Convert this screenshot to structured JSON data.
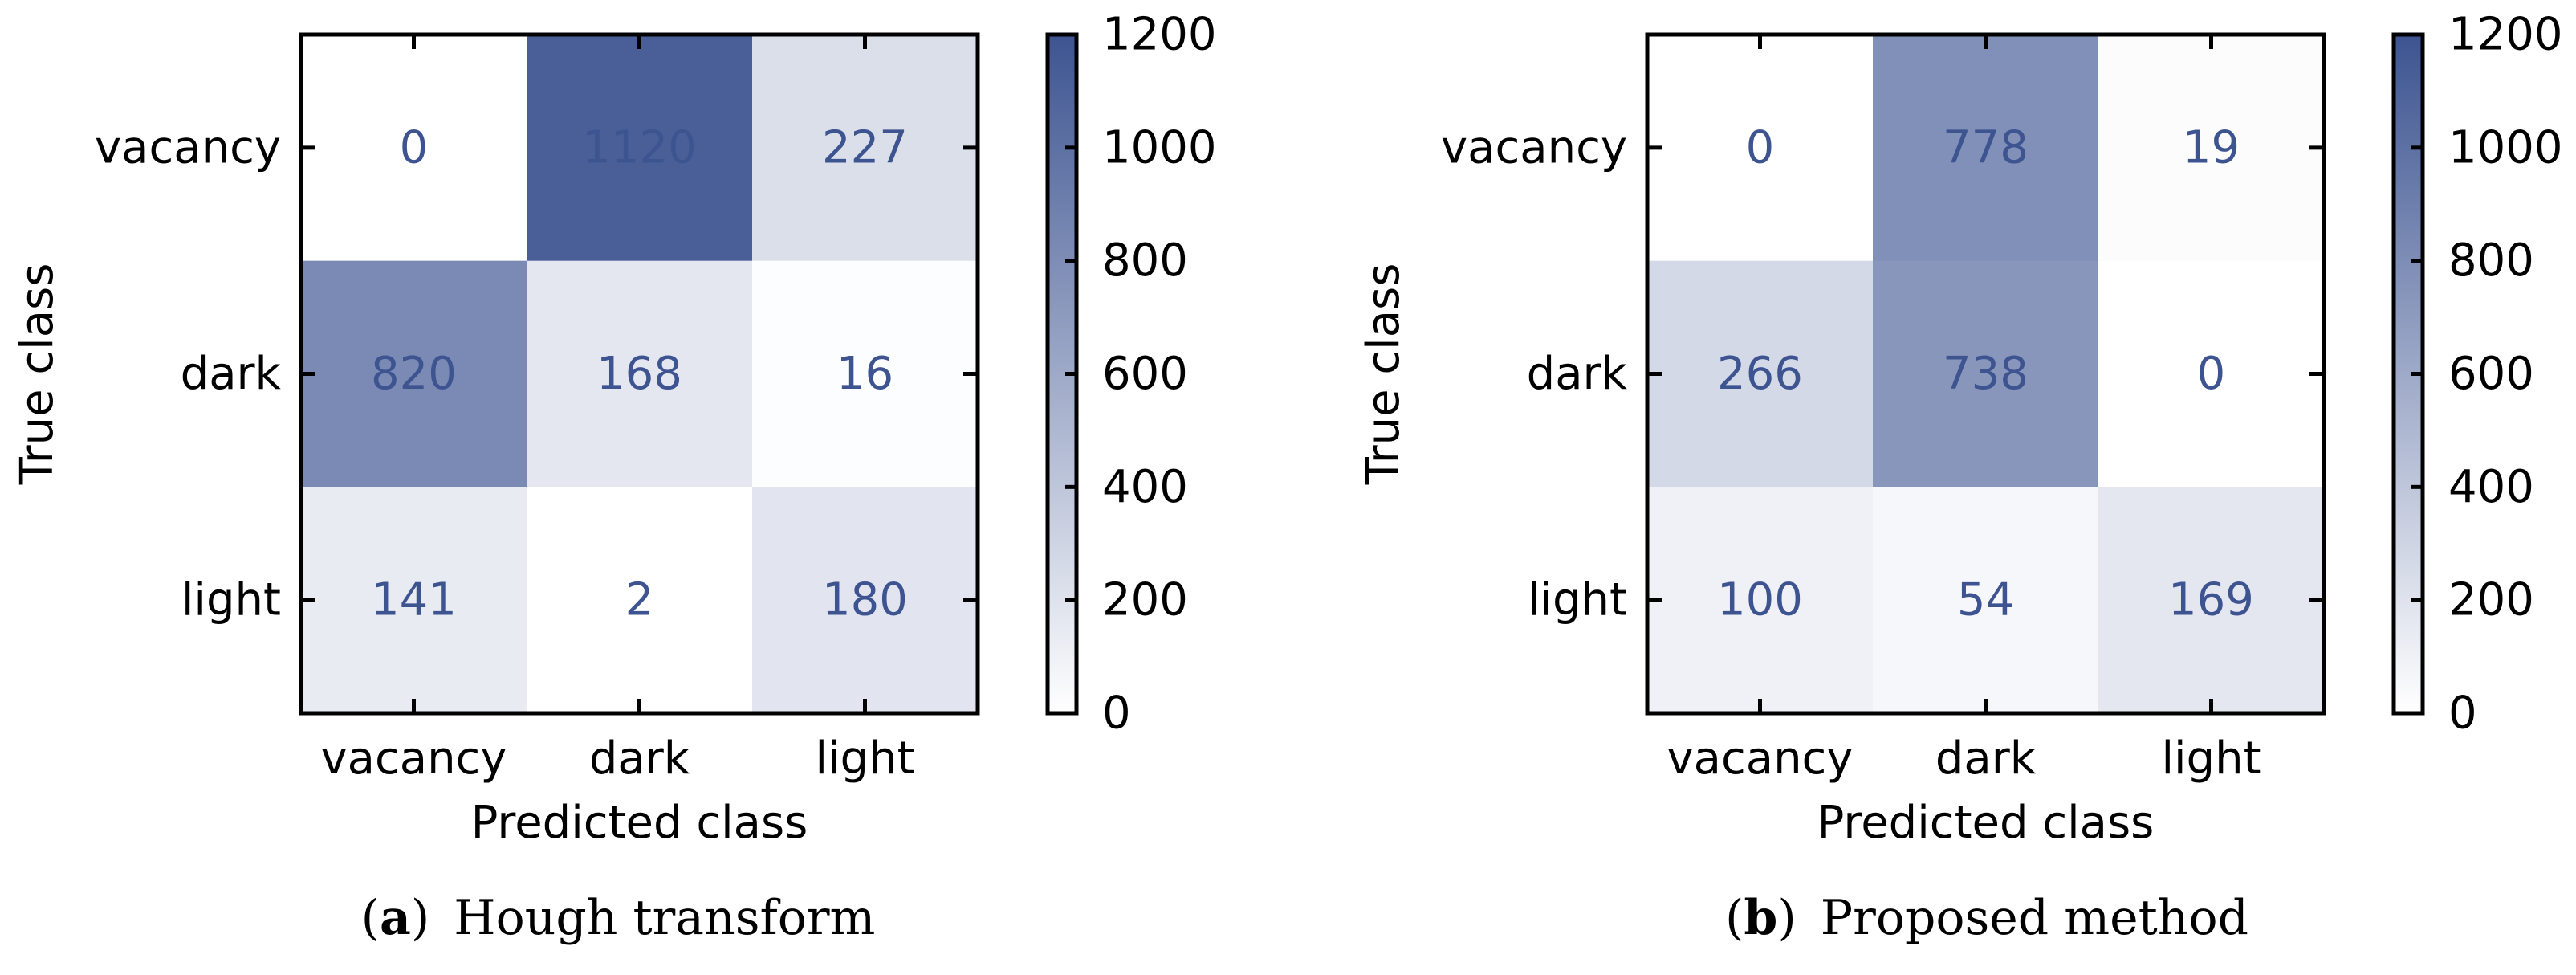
{
  "chart_data": [
    {
      "type": "heatmap",
      "title": "",
      "xlabel": "Predicted class",
      "ylabel": "True class",
      "x_categories": [
        "vacancy",
        "dark",
        "light"
      ],
      "y_categories": [
        "vacancy",
        "dark",
        "light"
      ],
      "matrix": [
        [
          0,
          1120,
          227
        ],
        [
          820,
          168,
          16
        ],
        [
          141,
          2,
          180
        ]
      ],
      "colorbar": {
        "min": 0,
        "max": 1200,
        "ticks": [
          "0",
          "200",
          "400",
          "600",
          "800",
          "1000",
          "1200"
        ]
      },
      "caption": {
        "letter": "a",
        "text": "Hough transform"
      }
    },
    {
      "type": "heatmap",
      "title": "",
      "xlabel": "Predicted class",
      "ylabel": "True class",
      "x_categories": [
        "vacancy",
        "dark",
        "light"
      ],
      "y_categories": [
        "vacancy",
        "dark",
        "light"
      ],
      "matrix": [
        [
          0,
          778,
          19
        ],
        [
          266,
          738,
          0
        ],
        [
          100,
          54,
          169
        ]
      ],
      "colorbar": {
        "min": 0,
        "max": 1200,
        "ticks": [
          "0",
          "200",
          "400",
          "600",
          "800",
          "1000",
          "1200"
        ]
      },
      "caption": {
        "letter": "b",
        "text": "Proposed method"
      }
    }
  ],
  "colors": {
    "low": "#ffffff",
    "high": "#3d5491",
    "cell_text": "#3d5491",
    "axis": "#000000"
  }
}
